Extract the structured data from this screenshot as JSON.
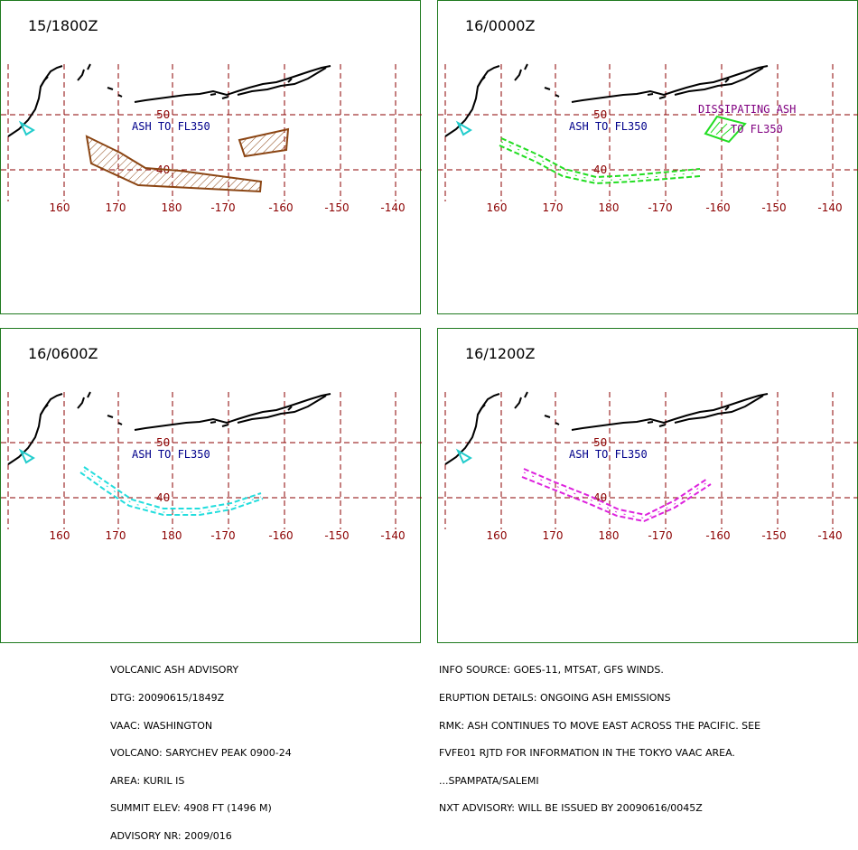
{
  "panels": [
    {
      "time": "15/1800Z",
      "ash_label": "ASH TO FL350",
      "ash_color": "#8b4513",
      "extra_label": "",
      "extra_label2": ""
    },
    {
      "time": "16/0000Z",
      "ash_label": "ASH TO FL350",
      "ash_color": "#22dd22",
      "extra_label": "DISSIPATING ASH",
      "extra_label2": "TO FL350",
      "extra_color": "#800080"
    },
    {
      "time": "16/0600Z",
      "ash_label": "ASH TO FL350",
      "ash_color": "#22dddd",
      "extra_label": "",
      "extra_label2": ""
    },
    {
      "time": "16/1200Z",
      "ash_label": "ASH TO FL350",
      "ash_color": "#dd22dd",
      "extra_label": "",
      "extra_label2": ""
    }
  ],
  "map": {
    "longitude_labels": [
      "160",
      "170",
      "180",
      "-170",
      "-160",
      "-150",
      "-140"
    ],
    "latitude_labels": [
      "50",
      "40"
    ],
    "grid_color": "#8b0000",
    "volcano_icon": "triangle-icon",
    "volcano_color": "#22cccc"
  },
  "advisory_left": [
    "VOLCANIC ASH ADVISORY",
    "DTG: 20090615/1849Z",
    "VAAC: WASHINGTON",
    "VOLCANO: SARYCHEV PEAK 0900-24",
    "AREA: KURIL IS",
    "SUMMIT ELEV: 4908 FT (1496 M)",
    "ADVISORY NR: 2009/016"
  ],
  "advisory_right": [
    "INFO SOURCE: GOES-11, MTSAT, GFS WINDS.",
    "ERUPTION DETAILS: ONGOING ASH EMISSIONS",
    "RMK: ASH CONTINUES TO MOVE EAST ACROSS THE PACIFIC. SEE",
    "FVFE01 RJTD FOR INFORMATION IN THE TOKYO VAAC AREA.",
    "...SPAMPATA/SALEMI",
    "NXT ADVISORY: WILL BE ISSUED BY 20090616/0045Z"
  ]
}
